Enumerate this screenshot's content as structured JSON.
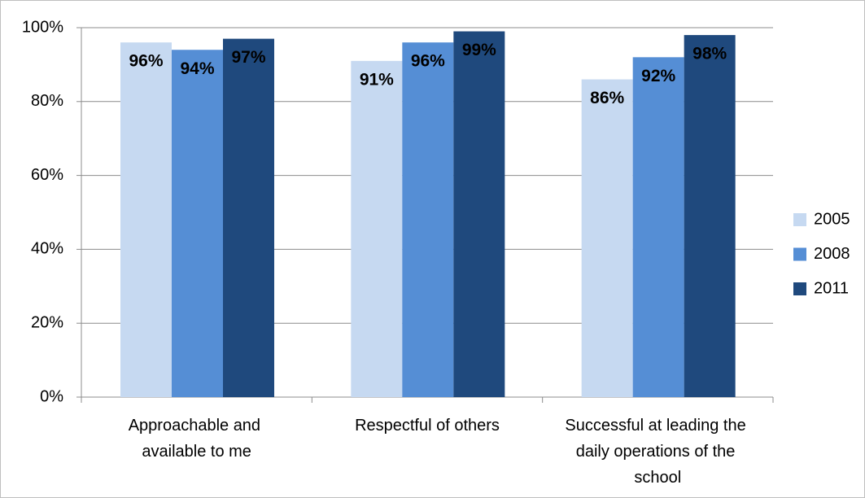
{
  "chart_data": {
    "type": "bar",
    "categories": [
      "Approachable and available to me",
      "Respectful of others",
      "Successful at leading the daily operations of the school"
    ],
    "series": [
      {
        "name": "2005",
        "color": "#c6d9f1",
        "values": [
          96,
          91,
          86
        ],
        "value_labels": [
          "96%",
          "91%",
          "86%"
        ]
      },
      {
        "name": "2008",
        "color": "#558ed5",
        "values": [
          94,
          96,
          92
        ],
        "value_labels": [
          "94%",
          "96%",
          "92%"
        ]
      },
      {
        "name": "2011",
        "color": "#1f497d",
        "values": [
          97,
          99,
          98
        ],
        "value_labels": [
          "97%",
          "99%",
          "98%"
        ]
      }
    ],
    "ylim": [
      0,
      100
    ],
    "yticks": [
      {
        "value": 0,
        "label": "0%"
      },
      {
        "value": 20,
        "label": "20%"
      },
      {
        "value": 40,
        "label": "40%"
      },
      {
        "value": 60,
        "label": "60%"
      },
      {
        "value": 80,
        "label": "80%"
      },
      {
        "value": 100,
        "label": "100%"
      }
    ],
    "grid": true,
    "legend": "right"
  }
}
